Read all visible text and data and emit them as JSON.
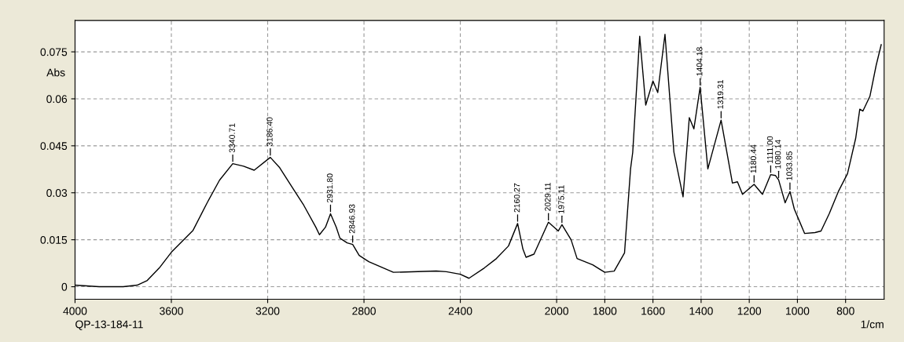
{
  "chart_data": {
    "type": "line",
    "xlabel": "1/cm",
    "ylabel": "Abs",
    "xlim": [
      4000,
      640
    ],
    "ylim": [
      -0.004,
      0.085
    ],
    "xticks": [
      4000,
      3600,
      3200,
      2800,
      2400,
      2000,
      1800,
      1600,
      1400,
      1200,
      1000,
      800
    ],
    "yticks": [
      0,
      0.015,
      0.03,
      0.045,
      0.06,
      0.075
    ],
    "grid": true,
    "marker": "none",
    "line_style": "solid",
    "series": [
      {
        "color": "#000000",
        "x": [
          4000,
          3900,
          3800,
          3742,
          3700,
          3650,
          3600,
          3510,
          3450,
          3400,
          3345,
          3300,
          3256,
          3189,
          3150,
          3100,
          3050,
          3000,
          2985,
          2960,
          2939,
          2915,
          2900,
          2870,
          2847,
          2820,
          2780,
          2678,
          2500,
          2458,
          2400,
          2364,
          2300,
          2250,
          2200,
          2162,
          2140,
          2127,
          2094,
          2034,
          1993,
          1978,
          1940,
          1915,
          1850,
          1800,
          1761,
          1718,
          1693,
          1684,
          1655,
          1630,
          1600,
          1580,
          1550,
          1513,
          1475,
          1449,
          1430,
          1404,
          1372,
          1317,
          1270,
          1249,
          1228,
          1180,
          1145,
          1111,
          1091,
          1078,
          1051,
          1031,
          1013,
          970,
          927,
          902,
          868,
          830,
          792,
          758,
          741,
          728,
          699,
          673,
          652
        ],
        "values": [
          0.0005,
          0.0,
          0.0,
          0.0005,
          0.002,
          0.006,
          0.011,
          0.018,
          0.027,
          0.034,
          0.0393,
          0.0385,
          0.0372,
          0.0413,
          0.038,
          0.032,
          0.026,
          0.019,
          0.0166,
          0.019,
          0.0233,
          0.019,
          0.0155,
          0.014,
          0.0135,
          0.01,
          0.008,
          0.0046,
          0.005,
          0.0048,
          0.004,
          0.0027,
          0.006,
          0.009,
          0.013,
          0.0202,
          0.012,
          0.0094,
          0.0104,
          0.0206,
          0.0178,
          0.0198,
          0.015,
          0.009,
          0.007,
          0.0046,
          0.005,
          0.0108,
          0.0376,
          0.0429,
          0.08,
          0.058,
          0.0657,
          0.062,
          0.0806,
          0.043,
          0.0287,
          0.054,
          0.0504,
          0.0637,
          0.0376,
          0.0532,
          0.0331,
          0.0335,
          0.0295,
          0.0327,
          0.0295,
          0.0358,
          0.0355,
          0.0341,
          0.0268,
          0.0304,
          0.0248,
          0.017,
          0.0173,
          0.0178,
          0.0233,
          0.0304,
          0.0361,
          0.0474,
          0.0567,
          0.0561,
          0.0608,
          0.0707,
          0.0773
        ]
      }
    ],
    "annotations": [
      {
        "text": "3340.71",
        "x": 3345,
        "y": 0.0393
      },
      {
        "text": "3186.40",
        "x": 3189,
        "y": 0.0413
      },
      {
        "text": "2931.80",
        "x": 2939,
        "y": 0.0233
      },
      {
        "text": "2846.93",
        "x": 2847,
        "y": 0.0135
      },
      {
        "text": "2160.27",
        "x": 2162,
        "y": 0.0202
      },
      {
        "text": "2029.11",
        "x": 2034,
        "y": 0.0206
      },
      {
        "text": "1975.11",
        "x": 1978,
        "y": 0.0198
      },
      {
        "text": "1404.18",
        "x": 1404,
        "y": 0.0637
      },
      {
        "text": "1319.31",
        "x": 1317,
        "y": 0.0532
      },
      {
        "text": "1180.44",
        "x": 1180,
        "y": 0.0327
      },
      {
        "text": "1111.00",
        "x": 1111,
        "y": 0.0358
      },
      {
        "text": "1080.14",
        "x": 1078,
        "y": 0.0341
      },
      {
        "text": "1033.85",
        "x": 1031,
        "y": 0.0304
      },
      "QP-13-184-11"
    ]
  }
}
